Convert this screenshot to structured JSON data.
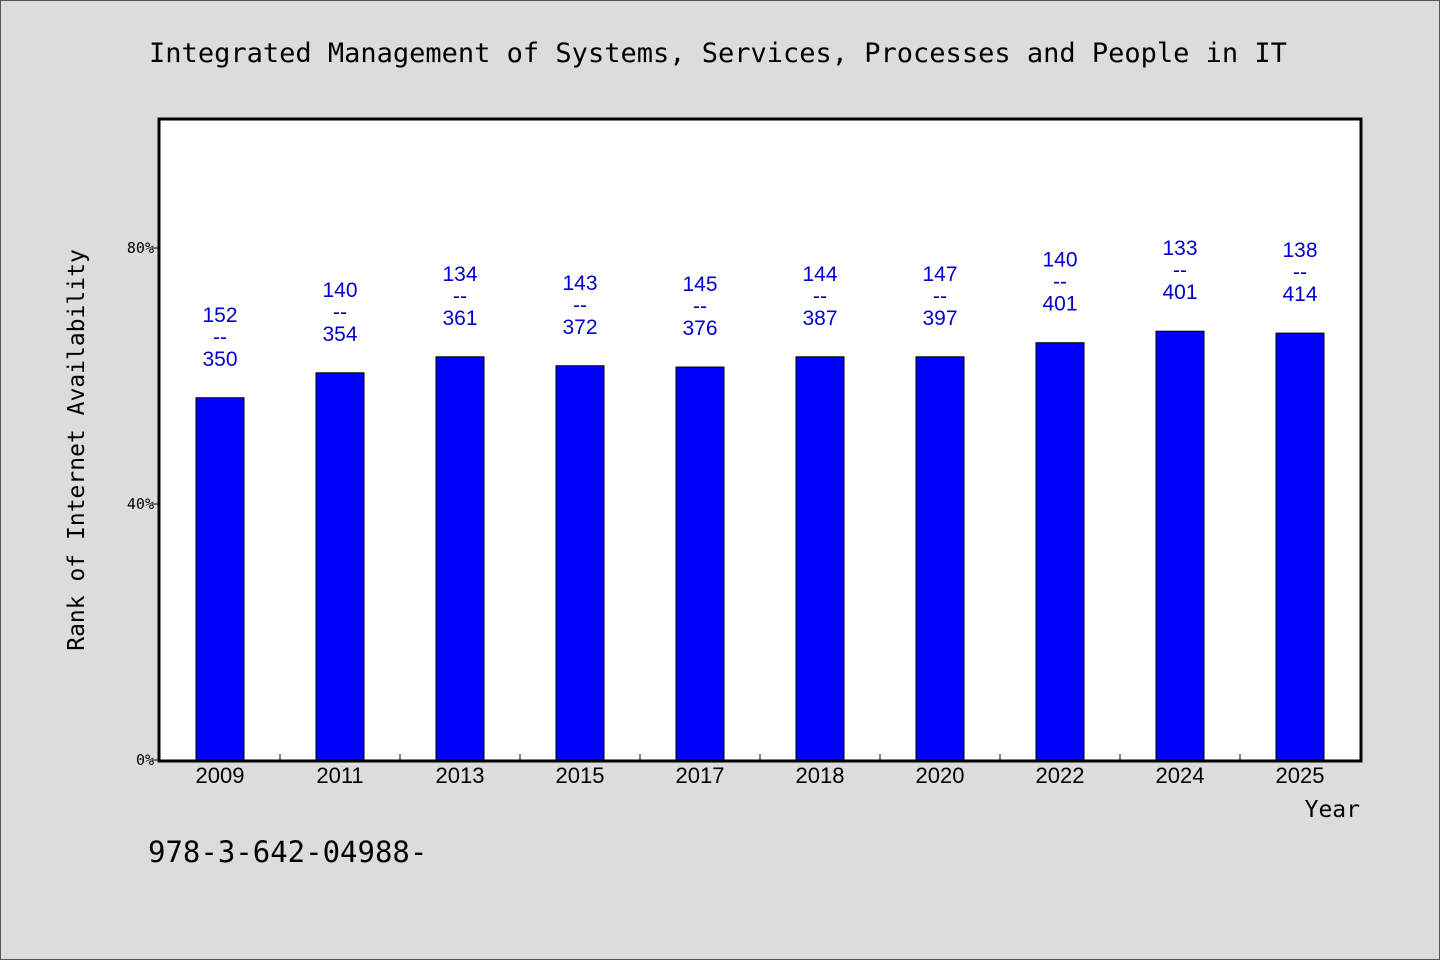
{
  "chart_data": {
    "type": "bar",
    "title": "Integrated Management of Systems, Services, Processes and People in IT",
    "xlabel": "Year",
    "ylabel": "Rank of Internet Availability",
    "categories": [
      "2009",
      "2011",
      "2013",
      "2015",
      "2017",
      "2018",
      "2020",
      "2022",
      "2024",
      "2025"
    ],
    "values": [
      56.6,
      60.5,
      63.0,
      61.6,
      61.4,
      63.0,
      63.0,
      65.2,
      67.0,
      66.7
    ],
    "data_labels": [
      {
        "top": "152",
        "sep": "--",
        "bottom": "350"
      },
      {
        "top": "140",
        "sep": "--",
        "bottom": "354"
      },
      {
        "top": "134",
        "sep": "--",
        "bottom": "361"
      },
      {
        "top": "143",
        "sep": "--",
        "bottom": "372"
      },
      {
        "top": "145",
        "sep": "--",
        "bottom": "376"
      },
      {
        "top": "144",
        "sep": "--",
        "bottom": "387"
      },
      {
        "top": "147",
        "sep": "--",
        "bottom": "397"
      },
      {
        "top": "140",
        "sep": "--",
        "bottom": "401"
      },
      {
        "top": "133",
        "sep": "--",
        "bottom": "401"
      },
      {
        "top": "138",
        "sep": "--",
        "bottom": "414"
      }
    ],
    "ylim": [
      0,
      100
    ],
    "yticks": [
      {
        "value": 0,
        "label": "0%"
      },
      {
        "value": 40,
        "label": "40%"
      },
      {
        "value": 80,
        "label": "80%"
      }
    ],
    "grid": false,
    "bar_color": "#0000ff",
    "label_color": "#0000cc",
    "footnote": "978-3-642-04988-"
  }
}
